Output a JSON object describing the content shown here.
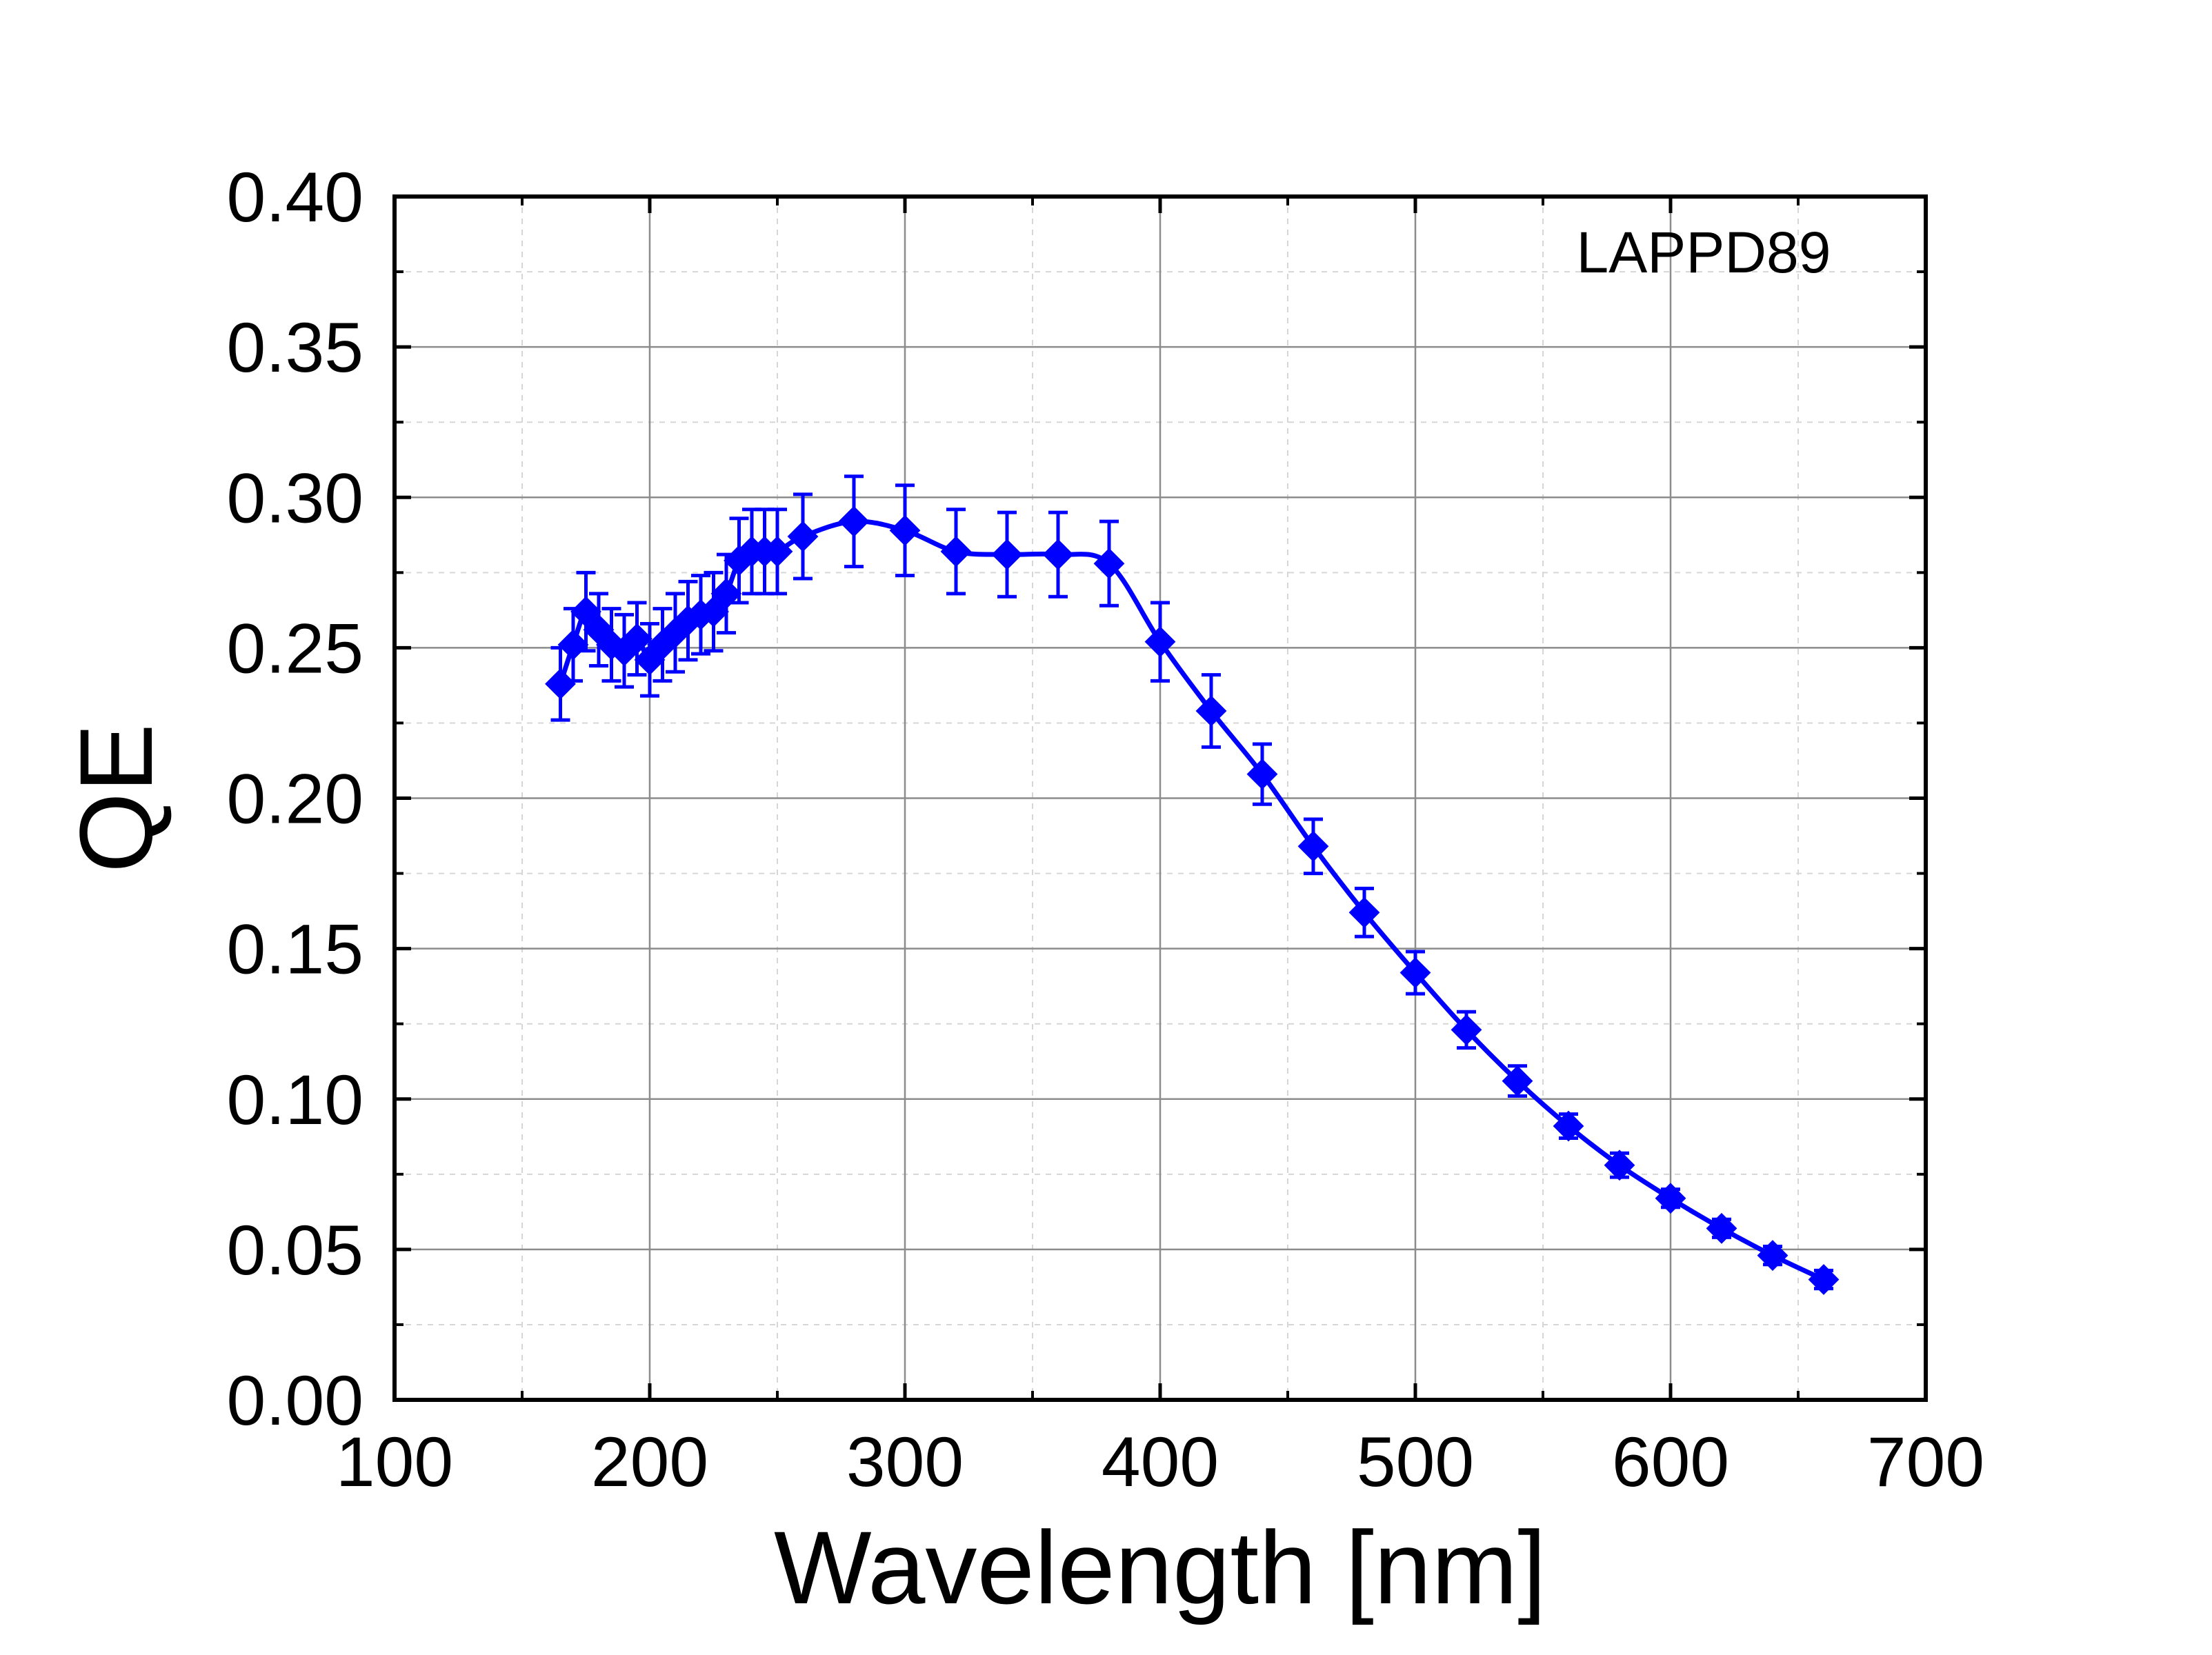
{
  "chart_data": {
    "type": "line",
    "title": "",
    "annotation": "LAPPD89",
    "xlabel": "Wavelength [nm]",
    "ylabel": "QE",
    "xlim": [
      100,
      700
    ],
    "ylim": [
      0.0,
      0.4
    ],
    "x_ticks": [
      "100",
      "200",
      "300",
      "400",
      "500",
      "600",
      "700"
    ],
    "y_ticks": [
      "0.00",
      "0.05",
      "0.10",
      "0.15",
      "0.20",
      "0.25",
      "0.30",
      "0.35",
      "0.40"
    ],
    "grid": true,
    "color": "#0000ff",
    "series": [
      {
        "name": "LAPPD89",
        "x": [
          165,
          170,
          175,
          180,
          185,
          190,
          195,
          200,
          205,
          210,
          215,
          220,
          225,
          230,
          235,
          240,
          245,
          250,
          260,
          280,
          300,
          320,
          340,
          360,
          380,
          400,
          420,
          440,
          460,
          480,
          500,
          520,
          540,
          560,
          580,
          600,
          620,
          640,
          660
        ],
        "y": [
          0.238,
          0.251,
          0.262,
          0.256,
          0.251,
          0.249,
          0.253,
          0.246,
          0.251,
          0.255,
          0.259,
          0.261,
          0.262,
          0.268,
          0.279,
          0.282,
          0.282,
          0.282,
          0.287,
          0.292,
          0.289,
          0.282,
          0.281,
          0.281,
          0.278,
          0.252,
          0.229,
          0.208,
          0.184,
          0.162,
          0.142,
          0.123,
          0.106,
          0.091,
          0.078,
          0.067,
          0.057,
          0.048,
          0.04
        ],
        "err": [
          0.012,
          0.012,
          0.013,
          0.012,
          0.012,
          0.012,
          0.012,
          0.012,
          0.012,
          0.013,
          0.013,
          0.013,
          0.013,
          0.013,
          0.014,
          0.014,
          0.014,
          0.014,
          0.014,
          0.015,
          0.015,
          0.014,
          0.014,
          0.014,
          0.014,
          0.013,
          0.012,
          0.01,
          0.009,
          0.008,
          0.007,
          0.006,
          0.005,
          0.004,
          0.004,
          0.003,
          0.003,
          0.003,
          0.003
        ]
      }
    ]
  }
}
